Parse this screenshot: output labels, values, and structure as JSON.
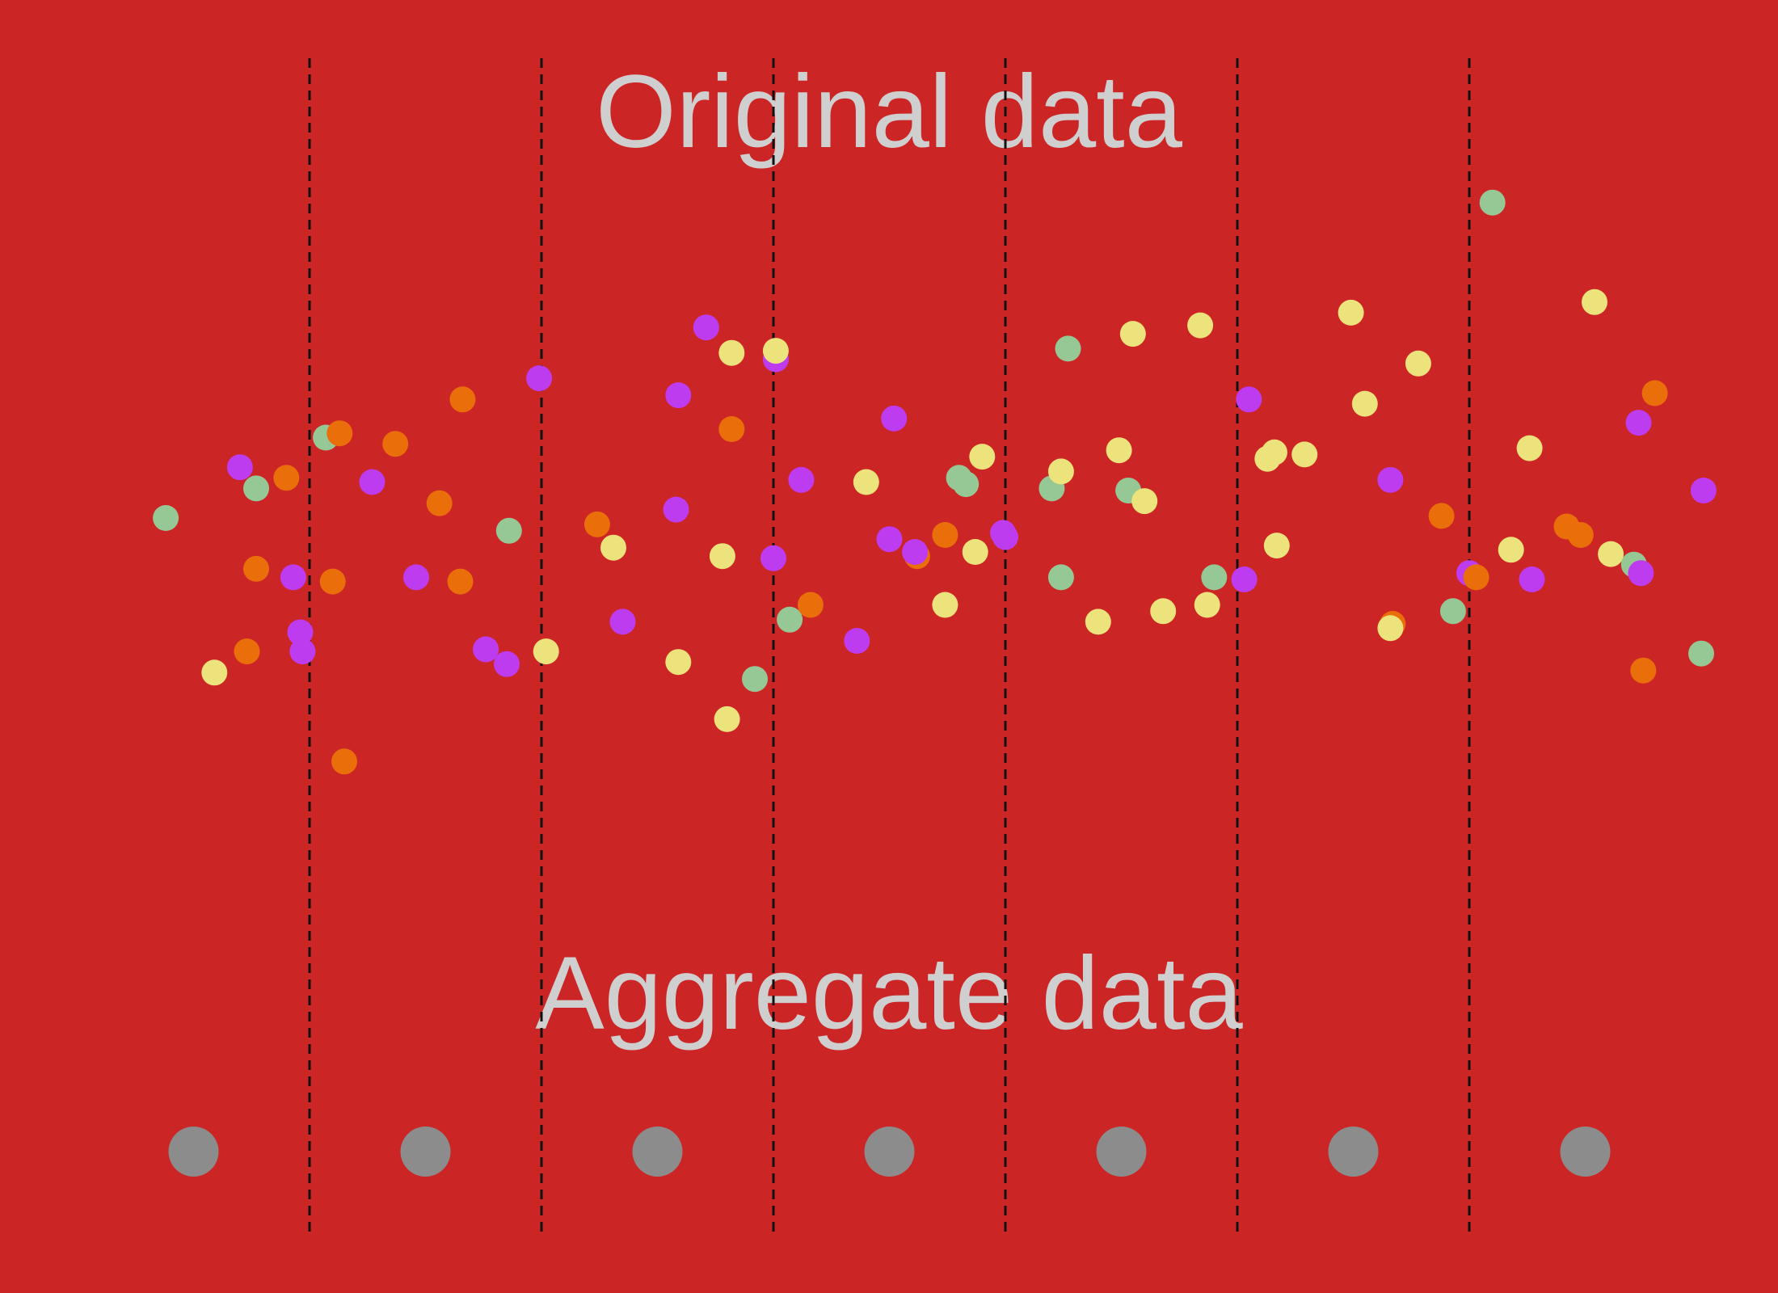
{
  "colors": {
    "background": "#cc2525",
    "title_text": "#cfcfcf",
    "divider": "#111111",
    "aggregate_dot": "#8c8c8c",
    "point_colors": {
      "green": "#96c896",
      "orange": "#ea6e0a",
      "purple": "#be3cf0",
      "yellow": "#ece37c"
    }
  },
  "labels": {
    "original_title": "Original data",
    "aggregate_title": "Aggregate data"
  },
  "chart_data": {
    "type": "scatter",
    "title": "",
    "bins": 7,
    "aggregate_values": [
      1,
      1,
      1,
      1,
      1,
      1,
      1
    ],
    "points": [
      {
        "c": "green",
        "x": 0.38,
        "y": 0.08
      },
      {
        "c": "orange",
        "x": 1.1,
        "y": -0.22
      },
      {
        "c": "purple",
        "x": 0.7,
        "y": 0.32
      },
      {
        "c": "green",
        "x": 0.77,
        "y": 0.22
      },
      {
        "c": "orange",
        "x": 0.9,
        "y": 0.27
      },
      {
        "c": "green",
        "x": 1.07,
        "y": 0.46
      },
      {
        "c": "orange",
        "x": 1.13,
        "y": 0.48
      },
      {
        "c": "orange",
        "x": 0.77,
        "y": -0.16
      },
      {
        "c": "purple",
        "x": 0.93,
        "y": -0.2
      },
      {
        "c": "orange",
        "x": 0.73,
        "y": -0.55
      },
      {
        "c": "yellow",
        "x": 0.59,
        "y": -0.65
      },
      {
        "c": "purple",
        "x": 0.96,
        "y": -0.46
      },
      {
        "c": "purple",
        "x": 0.97,
        "y": -0.55
      },
      {
        "c": "orange",
        "x": 1.15,
        "y": -1.07
      },
      {
        "c": "purple",
        "x": 1.27,
        "y": 0.25
      },
      {
        "c": "orange",
        "x": 1.37,
        "y": 0.43
      },
      {
        "c": "orange",
        "x": 1.66,
        "y": 0.64
      },
      {
        "c": "purple",
        "x": 1.99,
        "y": 0.74
      },
      {
        "c": "orange",
        "x": 1.56,
        "y": 0.15
      },
      {
        "c": "green",
        "x": 1.86,
        "y": 0.02
      },
      {
        "c": "purple",
        "x": 1.46,
        "y": -0.2
      },
      {
        "c": "orange",
        "x": 1.65,
        "y": -0.22
      },
      {
        "c": "purple",
        "x": 1.76,
        "y": -0.54
      },
      {
        "c": "purple",
        "x": 1.85,
        "y": -0.61
      },
      {
        "c": "yellow",
        "x": 2.02,
        "y": -0.55
      },
      {
        "c": "orange",
        "x": 2.24,
        "y": 0.05
      },
      {
        "c": "yellow",
        "x": 2.31,
        "y": -0.06
      },
      {
        "c": "purple",
        "x": 2.71,
        "y": 0.98
      },
      {
        "c": "yellow",
        "x": 2.82,
        "y": 0.86
      },
      {
        "c": "purple",
        "x": 3.01,
        "y": 0.83
      },
      {
        "c": "yellow",
        "x": 3.01,
        "y": 0.87
      },
      {
        "c": "purple",
        "x": 2.59,
        "y": 0.66
      },
      {
        "c": "orange",
        "x": 2.82,
        "y": 0.5
      },
      {
        "c": "purple",
        "x": 2.58,
        "y": 0.12
      },
      {
        "c": "yellow",
        "x": 2.78,
        "y": -0.1
      },
      {
        "c": "purple",
        "x": 3.0,
        "y": -0.11
      },
      {
        "c": "purple",
        "x": 2.35,
        "y": -0.41
      },
      {
        "c": "yellow",
        "x": 2.59,
        "y": -0.6
      },
      {
        "c": "green",
        "x": 2.92,
        "y": -0.68
      },
      {
        "c": "yellow",
        "x": 2.8,
        "y": -0.87
      },
      {
        "c": "green",
        "x": 3.07,
        "y": -0.4
      },
      {
        "c": "purple",
        "x": 3.12,
        "y": 0.26
      },
      {
        "c": "orange",
        "x": 3.16,
        "y": -0.33
      },
      {
        "c": "yellow",
        "x": 3.4,
        "y": 0.25
      },
      {
        "c": "purple",
        "x": 3.52,
        "y": 0.55
      },
      {
        "c": "purple",
        "x": 3.5,
        "y": -0.02
      },
      {
        "c": "purple",
        "x": 3.36,
        "y": -0.5
      },
      {
        "c": "orange",
        "x": 3.62,
        "y": -0.1
      },
      {
        "c": "purple",
        "x": 3.61,
        "y": -0.08
      },
      {
        "c": "orange",
        "x": 3.74,
        "y": 0.0
      },
      {
        "c": "yellow",
        "x": 3.74,
        "y": -0.33
      },
      {
        "c": "green",
        "x": 3.8,
        "y": 0.27
      },
      {
        "c": "green",
        "x": 3.83,
        "y": 0.24
      },
      {
        "c": "yellow",
        "x": 3.9,
        "y": 0.37
      },
      {
        "c": "yellow",
        "x": 3.87,
        "y": -0.08
      },
      {
        "c": "purple",
        "x": 4.0,
        "y": -0.01
      },
      {
        "c": "purple",
        "x": 3.99,
        "y": 0.01
      },
      {
        "c": "green",
        "x": 4.2,
        "y": 0.22
      },
      {
        "c": "yellow",
        "x": 4.24,
        "y": 0.3
      },
      {
        "c": "green",
        "x": 4.27,
        "y": 0.88
      },
      {
        "c": "yellow",
        "x": 4.55,
        "y": 0.95
      },
      {
        "c": "yellow",
        "x": 4.84,
        "y": 0.99
      },
      {
        "c": "yellow",
        "x": 4.49,
        "y": 0.4
      },
      {
        "c": "green",
        "x": 4.53,
        "y": 0.21
      },
      {
        "c": "yellow",
        "x": 4.6,
        "y": 0.16
      },
      {
        "c": "green",
        "x": 4.24,
        "y": -0.2
      },
      {
        "c": "yellow",
        "x": 4.4,
        "y": -0.41
      },
      {
        "c": "yellow",
        "x": 4.68,
        "y": -0.36
      },
      {
        "c": "yellow",
        "x": 4.87,
        "y": -0.33
      },
      {
        "c": "green",
        "x": 4.9,
        "y": -0.2
      },
      {
        "c": "purple",
        "x": 5.03,
        "y": -0.21
      },
      {
        "c": "purple",
        "x": 5.05,
        "y": 0.64
      },
      {
        "c": "yellow",
        "x": 5.13,
        "y": 0.36
      },
      {
        "c": "yellow",
        "x": 5.16,
        "y": 0.39
      },
      {
        "c": "yellow",
        "x": 5.29,
        "y": 0.38
      },
      {
        "c": "yellow",
        "x": 5.17,
        "y": -0.05
      },
      {
        "c": "yellow",
        "x": 5.49,
        "y": 1.05
      },
      {
        "c": "yellow",
        "x": 5.55,
        "y": 0.62
      },
      {
        "c": "yellow",
        "x": 5.78,
        "y": 0.81
      },
      {
        "c": "purple",
        "x": 5.66,
        "y": 0.26
      },
      {
        "c": "orange",
        "x": 5.88,
        "y": 0.09
      },
      {
        "c": "orange",
        "x": 5.67,
        "y": -0.42
      },
      {
        "c": "yellow",
        "x": 5.66,
        "y": -0.44
      },
      {
        "c": "green",
        "x": 5.93,
        "y": -0.36
      },
      {
        "c": "purple",
        "x": 6.0,
        "y": -0.18
      },
      {
        "c": "orange",
        "x": 6.03,
        "y": -0.2
      },
      {
        "c": "green",
        "x": 6.1,
        "y": 1.57
      },
      {
        "c": "yellow",
        "x": 6.54,
        "y": 1.1
      },
      {
        "c": "yellow",
        "x": 6.26,
        "y": 0.41
      },
      {
        "c": "orange",
        "x": 6.8,
        "y": 0.67
      },
      {
        "c": "purple",
        "x": 6.73,
        "y": 0.53
      },
      {
        "c": "yellow",
        "x": 6.18,
        "y": -0.07
      },
      {
        "c": "purple",
        "x": 6.27,
        "y": -0.21
      },
      {
        "c": "orange",
        "x": 6.42,
        "y": 0.04
      },
      {
        "c": "orange",
        "x": 6.48,
        "y": 0.0
      },
      {
        "c": "yellow",
        "x": 6.61,
        "y": -0.09
      },
      {
        "c": "green",
        "x": 6.71,
        "y": -0.14
      },
      {
        "c": "purple",
        "x": 6.74,
        "y": -0.18
      },
      {
        "c": "orange",
        "x": 6.75,
        "y": -0.64
      },
      {
        "c": "purple",
        "x": 7.01,
        "y": 0.21
      },
      {
        "c": "green",
        "x": 7.0,
        "y": -0.56
      }
    ]
  }
}
